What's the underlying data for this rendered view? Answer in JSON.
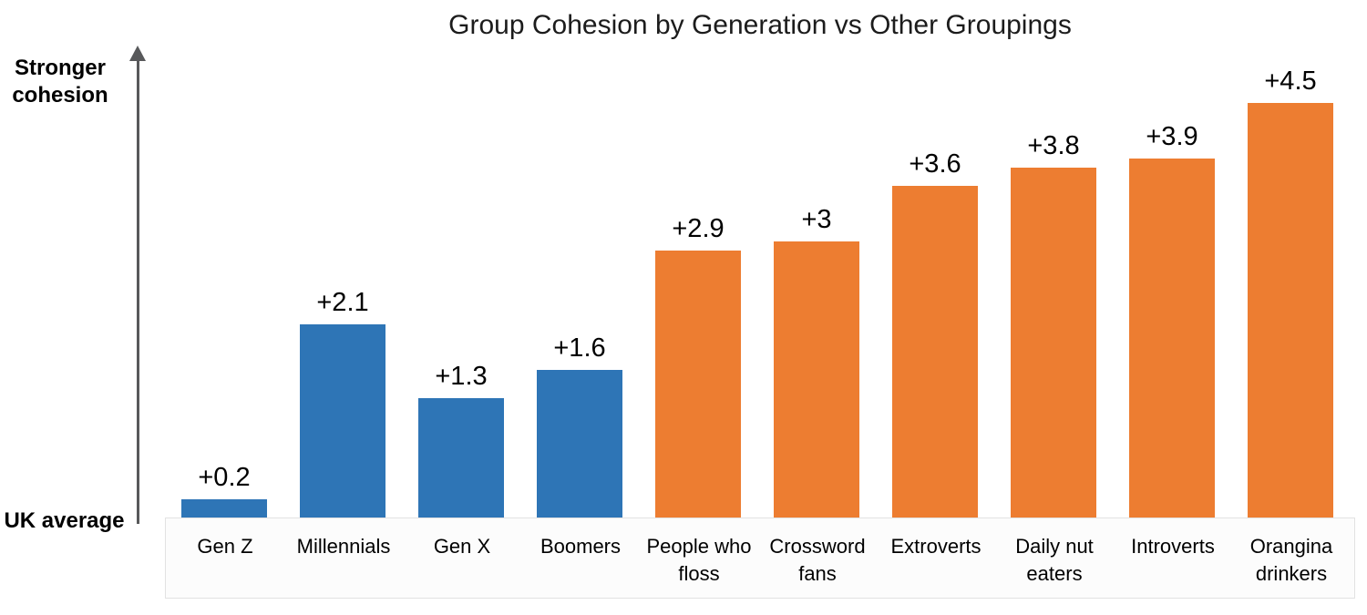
{
  "chart_data": {
    "type": "bar",
    "title": "Group Cohesion by Generation vs Other Groupings",
    "categories": [
      "Gen Z",
      "Millennials",
      "Gen X",
      "Boomers",
      "People who floss",
      "Crossword fans",
      "Extroverts",
      "Daily nut eaters",
      "Introverts",
      "Orangina drinkers"
    ],
    "values": [
      0.2,
      2.1,
      1.3,
      1.6,
      2.9,
      3,
      3.6,
      3.8,
      3.9,
      4.5
    ],
    "data_labels": [
      "+0.2",
      "+2.1",
      "+1.3",
      "+1.6",
      "+2.9",
      "+3",
      "+3.6",
      "+3.8",
      "+3.9",
      "+4.5"
    ],
    "bar_colors": [
      "#2E75B6",
      "#2E75B6",
      "#2E75B6",
      "#2E75B6",
      "#ED7D31",
      "#ED7D31",
      "#ED7D31",
      "#ED7D31",
      "#ED7D31",
      "#ED7D31"
    ],
    "accent_blue": "#2E75B6",
    "accent_orange": "#ED7D31",
    "axis_color": "#58595B",
    "ylim": [
      0,
      5
    ],
    "grid": false,
    "legend": false,
    "xlabel": "",
    "ylabel": ""
  },
  "y_axis": {
    "top_label": "Stronger cohesion",
    "bottom_label": "UK average"
  }
}
